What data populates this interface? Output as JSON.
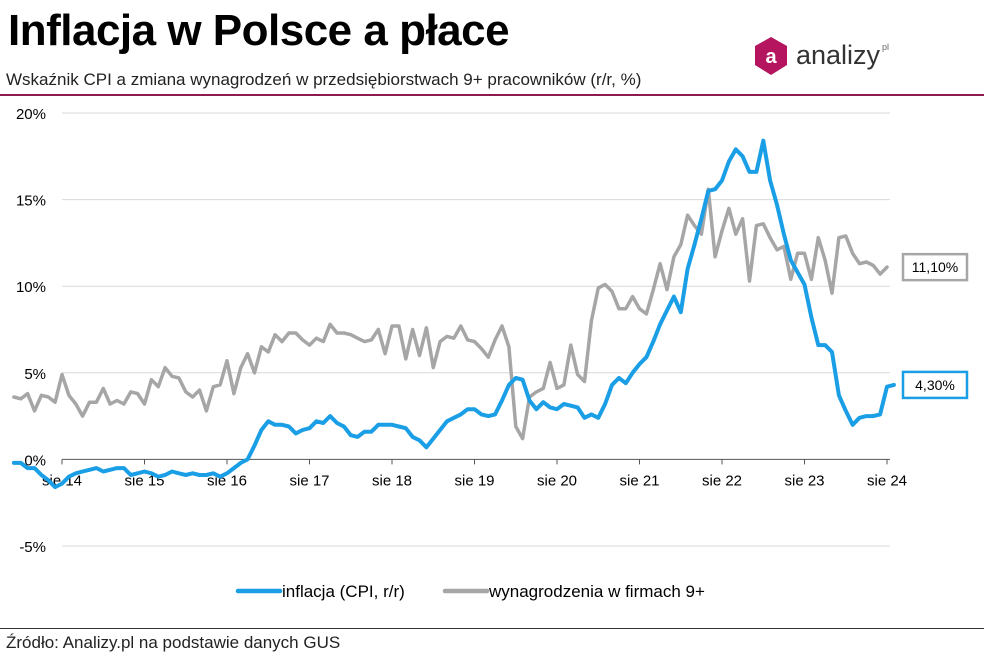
{
  "header": {
    "title": "Inflacja w Polsce a płace",
    "subtitle": "Wskaźnik CPI a zmiana wynagrodzeń w przedsiębiorstwach 9+ pracowników (r/r, %)"
  },
  "logo": {
    "letter": "a",
    "text": "analizy",
    "suffix": "pl",
    "color": "#b5155f"
  },
  "footer": {
    "source": "Źródło: Analizy.pl na podstawie danych GUS"
  },
  "chart_data": {
    "type": "line",
    "y_ticks": [
      -5,
      0,
      5,
      10,
      15,
      20
    ],
    "y_tick_labels": [
      "-5%",
      "0%",
      "5%",
      "10%",
      "15%",
      "20%"
    ],
    "ylim": [
      -5,
      20
    ],
    "x_tick_labels": [
      "sie 14",
      "sie 15",
      "sie 16",
      "sie 17",
      "sie 18",
      "sie 19",
      "sie 20",
      "sie 21",
      "sie 22",
      "sie 23",
      "sie 24"
    ],
    "x_start": "2014-01",
    "grid": true,
    "legend_position": "bottom",
    "series": [
      {
        "name": "inflacja (CPI, r/r)",
        "color": "#1a9ee6",
        "end_label": "4,30%",
        "values": [
          -0.2,
          -0.2,
          -0.5,
          -0.5,
          -0.9,
          -1.2,
          -1.6,
          -1.4,
          -1.0,
          -0.8,
          -0.7,
          -0.6,
          -0.5,
          -0.7,
          -0.6,
          -0.5,
          -0.5,
          -0.9,
          -0.8,
          -0.7,
          -0.8,
          -1.0,
          -0.9,
          -0.7,
          -0.8,
          -0.9,
          -0.8,
          -0.9,
          -0.9,
          -0.8,
          -1.0,
          -0.8,
          -0.5,
          -0.2,
          0.0,
          0.8,
          1.7,
          2.2,
          2.0,
          2.0,
          1.9,
          1.5,
          1.7,
          1.8,
          2.2,
          2.1,
          2.5,
          2.1,
          1.9,
          1.4,
          1.3,
          1.6,
          1.6,
          2.0,
          2.0,
          2.0,
          1.9,
          1.8,
          1.3,
          1.1,
          0.7,
          1.2,
          1.7,
          2.2,
          2.4,
          2.6,
          2.9,
          2.9,
          2.6,
          2.5,
          2.6,
          3.4,
          4.3,
          4.7,
          4.6,
          3.4,
          2.9,
          3.3,
          3.0,
          2.9,
          3.2,
          3.1,
          3.0,
          2.4,
          2.6,
          2.4,
          3.2,
          4.3,
          4.7,
          4.4,
          5.0,
          5.5,
          5.9,
          6.8,
          7.8,
          8.6,
          9.4,
          8.5,
          11.0,
          12.4,
          13.9,
          15.5,
          15.6,
          16.1,
          17.2,
          17.9,
          17.5,
          16.6,
          16.6,
          18.4,
          16.1,
          14.7,
          13.0,
          11.5,
          10.8,
          10.1,
          8.2,
          6.6,
          6.6,
          6.2,
          3.7,
          2.8,
          2.0,
          2.4,
          2.5,
          2.5,
          2.6,
          4.2,
          4.3
        ]
      },
      {
        "name": "wynagrodzenia w firmach 9+",
        "color": "#a6a6a6",
        "end_label": "11,10%",
        "values": [
          3.6,
          3.5,
          3.8,
          2.8,
          3.7,
          3.6,
          3.3,
          4.9,
          3.7,
          3.2,
          2.5,
          3.3,
          3.3,
          4.1,
          3.2,
          3.4,
          3.2,
          3.9,
          3.8,
          3.2,
          4.6,
          4.2,
          5.3,
          4.8,
          4.7,
          3.9,
          3.6,
          4.0,
          2.8,
          4.2,
          4.3,
          5.7,
          3.8,
          5.3,
          6.1,
          5.0,
          6.5,
          6.2,
          7.2,
          6.8,
          7.3,
          7.3,
          6.9,
          6.6,
          7.0,
          6.8,
          7.8,
          7.3,
          7.3,
          7.2,
          7.0,
          6.8,
          6.9,
          7.5,
          6.1,
          7.7,
          7.7,
          5.8,
          7.5,
          6.0,
          7.6,
          5.3,
          6.8,
          7.1,
          7.0,
          7.7,
          6.9,
          6.8,
          6.4,
          5.9,
          6.9,
          7.7,
          6.5,
          1.9,
          1.2,
          3.6,
          3.9,
          4.1,
          5.6,
          4.1,
          4.3,
          6.6,
          4.9,
          4.5,
          8.0,
          9.9,
          10.1,
          9.7,
          8.7,
          8.7,
          9.4,
          8.7,
          8.4,
          9.8,
          11.3,
          9.8,
          11.7,
          12.4,
          14.1,
          13.5,
          13.0,
          15.6,
          11.7,
          13.2,
          14.5,
          13.0,
          13.9,
          10.3,
          13.5,
          13.6,
          12.8,
          12.1,
          12.3,
          10.4,
          11.9,
          11.9,
          10.4,
          12.8,
          11.5,
          9.6,
          12.8,
          12.9,
          11.9,
          11.3,
          11.4,
          11.2,
          10.7,
          11.1
        ]
      }
    ]
  }
}
